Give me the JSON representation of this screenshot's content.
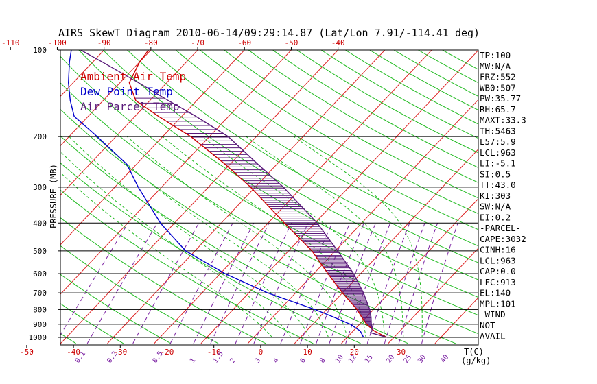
{
  "title": "AIRS SkewT Diagram 2010-06-14/09:29:14.87 (Lat/Lon 7.91/-114.41 deg)",
  "colors": {
    "ambient": "#cc0000",
    "dewpoint": "#0000cc",
    "parcel": "#5a1a7a",
    "isotherm": "#dd2222",
    "dry_adiabat": "#22bb22",
    "mixing_ratio": "#7a1fa2",
    "moist_adiabat": "#22bb22",
    "isobar": "#000000"
  },
  "chart_data": {
    "type": "line",
    "title": "AIRS SkewT Diagram 2010-06-14/09:29:14.87 (Lat/Lon 7.91/-114.41 deg)",
    "ylabel": "PRESSURE (MB)",
    "xlabel": "T(C)",
    "mixing_ratio_label": "(g/kg)",
    "y_scale": "log",
    "ylim": [
      1000,
      100
    ],
    "pressure_ticks": [
      100,
      200,
      300,
      400,
      500,
      600,
      700,
      800,
      900,
      1000
    ],
    "bottom_temp_ticks": [
      -50,
      -40,
      -30,
      -20,
      -10,
      0,
      10,
      20,
      30
    ],
    "top_temp_ticks": [
      -120,
      -110,
      -100,
      -90,
      -80,
      -70,
      -60,
      -50,
      -40
    ],
    "mixing_ratio_ticks": [
      "0.1",
      "0.2",
      "0.5",
      "1",
      "1.5",
      "2",
      "3",
      "4",
      "6",
      "8",
      "10",
      "12",
      "15",
      "20",
      "25",
      "30",
      "40"
    ],
    "legend": [
      {
        "label": "Ambient Air Temp",
        "color": "#cc0000"
      },
      {
        "label": "Dew Point Temp",
        "color": "#0000cc"
      },
      {
        "label": "Air Parcel Temp",
        "color": "#5a1a7a"
      }
    ],
    "series": [
      {
        "name": "Ambient Air Temp",
        "x_units": "C",
        "points": [
          {
            "p": 1000,
            "t": 28.5
          },
          {
            "p": 950,
            "t": 24.5
          },
          {
            "p": 900,
            "t": 21.5
          },
          {
            "p": 850,
            "t": 19.0
          },
          {
            "p": 800,
            "t": 16.5
          },
          {
            "p": 700,
            "t": 10.0
          },
          {
            "p": 600,
            "t": 3.0
          },
          {
            "p": 500,
            "t": -5.0
          },
          {
            "p": 400,
            "t": -16.5
          },
          {
            "p": 300,
            "t": -31.0
          },
          {
            "p": 250,
            "t": -41.0
          },
          {
            "p": 200,
            "t": -54.0
          },
          {
            "p": 170,
            "t": -65.0
          },
          {
            "p": 150,
            "t": -73.0
          },
          {
            "p": 130,
            "t": -78.0
          },
          {
            "p": 110,
            "t": -80.0
          },
          {
            "p": 100,
            "t": -80.5
          }
        ]
      },
      {
        "name": "Dew Point Temp",
        "x_units": "C",
        "points": [
          {
            "p": 1000,
            "t": 23.5
          },
          {
            "p": 950,
            "t": 21.5
          },
          {
            "p": 900,
            "t": 18.0
          },
          {
            "p": 850,
            "t": 13.0
          },
          {
            "p": 800,
            "t": 7.5
          },
          {
            "p": 700,
            "t": -6.0
          },
          {
            "p": 600,
            "t": -19.0
          },
          {
            "p": 500,
            "t": -32.0
          },
          {
            "p": 400,
            "t": -43.0
          },
          {
            "p": 300,
            "t": -55.0
          },
          {
            "p": 250,
            "t": -62.0
          },
          {
            "p": 200,
            "t": -74.0
          },
          {
            "p": 170,
            "t": -83.0
          },
          {
            "p": 150,
            "t": -87.0
          },
          {
            "p": 130,
            "t": -91.0
          },
          {
            "p": 110,
            "t": -95.0
          },
          {
            "p": 100,
            "t": -97.0
          }
        ]
      },
      {
        "name": "Air Parcel Temp",
        "x_units": "C",
        "points": [
          {
            "p": 1000,
            "t": 28.5
          },
          {
            "p": 963,
            "t": 24.0
          },
          {
            "p": 950,
            "t": 24.0
          },
          {
            "p": 913,
            "t": 23.0
          },
          {
            "p": 900,
            "t": 22.5
          },
          {
            "p": 850,
            "t": 21.0
          },
          {
            "p": 800,
            "t": 19.2
          },
          {
            "p": 700,
            "t": 14.5
          },
          {
            "p": 600,
            "t": 8.5
          },
          {
            "p": 500,
            "t": 0.5
          },
          {
            "p": 400,
            "t": -9.5
          },
          {
            "p": 300,
            "t": -24.0
          },
          {
            "p": 250,
            "t": -34.0
          },
          {
            "p": 200,
            "t": -46.0
          },
          {
            "p": 170,
            "t": -57.0
          },
          {
            "p": 150,
            "t": -66.0
          },
          {
            "p": 130,
            "t": -76.0
          },
          {
            "p": 110,
            "t": -88.0
          },
          {
            "p": 100,
            "t": -95.0
          }
        ]
      }
    ],
    "indices": [
      "TP:100",
      "MW:N/A",
      "FRZ:552",
      "WB0:507",
      "PW:35.77",
      "RH:65.7",
      "MAXT:33.3",
      "TH:5463",
      "L57:5.9",
      "LCL:963",
      "LI:-5.1",
      "SI:0.5",
      "TT:43.0",
      "KI:303",
      "SW:N/A",
      "EI:0.2",
      "-PARCEL-",
      "CAPE:3032",
      "CINH:16",
      "LCL:963",
      "CAP:0.0",
      "LFC:913",
      "EL:140",
      "MPL:101",
      "-WIND-",
      "NOT",
      "AVAIL"
    ]
  }
}
